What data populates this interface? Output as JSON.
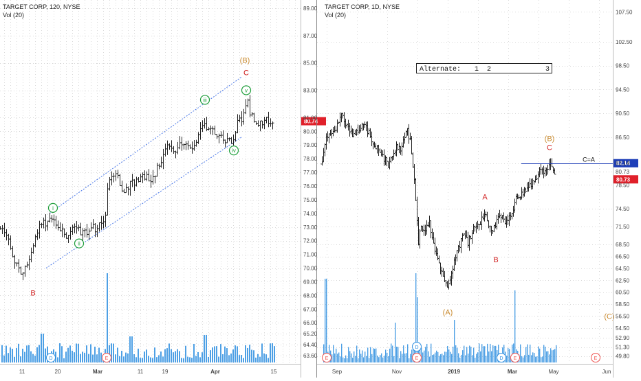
{
  "colors": {
    "bull": "#26a69a",
    "bear": "#ef5350",
    "bar": "#222222",
    "volume": "#2f8fe0",
    "channel": "#4a78e8",
    "wave_red": "#d01f1f",
    "wave_brown": "#c98a2e",
    "wave_green": "#1e9e3a",
    "price_label": "#e0202a",
    "target_label": "#1f3fb8",
    "grid": "#d8d8d8",
    "axis_text": "#444444"
  },
  "chart_data": [
    {
      "type": "ohlc",
      "title": "TARGET CORP, 120, NYSE",
      "indicator": "Vol (20)",
      "ylim": [
        63.0,
        89.6
      ],
      "y_ticks": [
        "89.00",
        "87.00",
        "85.00",
        "83.00",
        "81.00",
        "80.00",
        "79.00",
        "78.00",
        "77.00",
        "76.00",
        "75.00",
        "74.00",
        "73.00",
        "72.00",
        "71.00",
        "70.00",
        "69.00",
        "68.00",
        "67.00",
        "66.00",
        "65.20",
        "64.40",
        "63.60"
      ],
      "x_ticks": [
        "11",
        "20",
        "Mar",
        "11",
        "19",
        "Apr",
        "15"
      ],
      "last_price": "80.74",
      "path": [
        [
          0,
          73.0
        ],
        [
          8,
          72.4
        ],
        [
          14,
          71.6
        ],
        [
          20,
          70.6
        ],
        [
          26,
          70.0
        ],
        [
          32,
          69.4
        ],
        [
          38,
          70.3
        ],
        [
          44,
          70.8
        ],
        [
          50,
          72.2
        ],
        [
          56,
          73.0
        ],
        [
          62,
          73.2
        ],
        [
          68,
          73.4
        ],
        [
          74,
          73.8
        ],
        [
          80,
          73.5
        ],
        [
          86,
          72.8
        ],
        [
          92,
          72.6
        ],
        [
          98,
          72.2
        ],
        [
          104,
          73.0
        ],
        [
          110,
          73.1
        ],
        [
          116,
          72.6
        ],
        [
          122,
          72.9
        ],
        [
          128,
          72.6
        ],
        [
          134,
          73.0
        ],
        [
          140,
          72.8
        ],
        [
          146,
          73.4
        ],
        [
          152,
          73.0
        ],
        [
          156,
          75.8
        ],
        [
          160,
          76.5
        ],
        [
          166,
          77.0
        ],
        [
          172,
          76.6
        ],
        [
          178,
          75.4
        ],
        [
          184,
          75.7
        ],
        [
          190,
          76.2
        ],
        [
          196,
          76.3
        ],
        [
          202,
          76.5
        ],
        [
          208,
          76.8
        ],
        [
          214,
          76.6
        ],
        [
          220,
          76.5
        ],
        [
          226,
          77.0
        ],
        [
          232,
          77.8
        ],
        [
          238,
          78.3
        ],
        [
          244,
          79.2
        ],
        [
          250,
          78.5
        ],
        [
          256,
          78.6
        ],
        [
          262,
          79.4
        ],
        [
          268,
          79.0
        ],
        [
          274,
          78.6
        ],
        [
          280,
          78.8
        ],
        [
          286,
          79.6
        ],
        [
          292,
          80.2
        ],
        [
          298,
          80.5
        ],
        [
          304,
          80.2
        ],
        [
          310,
          80.0
        ],
        [
          316,
          79.8
        ],
        [
          322,
          79.6
        ],
        [
          328,
          79.4
        ],
        [
          334,
          79.2
        ],
        [
          340,
          79.6
        ],
        [
          346,
          80.8
        ],
        [
          352,
          81.0
        ],
        [
          356,
          81.6
        ],
        [
          360,
          82.2
        ],
        [
          364,
          81.2
        ],
        [
          368,
          80.9
        ],
        [
          374,
          80.7
        ],
        [
          380,
          80.6
        ],
        [
          386,
          80.8
        ],
        [
          392,
          80.6
        ],
        [
          398,
          80.7
        ]
      ],
      "waves": [
        {
          "label": "B",
          "kind": "letter",
          "color": "red",
          "x": 48,
          "price": 68.2
        },
        {
          "label": "i",
          "kind": "circle",
          "color": "green",
          "x": 77,
          "price": 74.4
        },
        {
          "label": "ii",
          "kind": "circle",
          "color": "green",
          "x": 115,
          "price": 71.8
        },
        {
          "label": "iii",
          "kind": "circle",
          "color": "green",
          "x": 298,
          "price": 82.3
        },
        {
          "label": "iv",
          "kind": "circle",
          "color": "green",
          "x": 340,
          "price": 78.6
        },
        {
          "label": "v",
          "kind": "circle",
          "color": "green",
          "x": 358,
          "price": 83.0
        },
        {
          "label": "C",
          "kind": "letter",
          "color": "red",
          "x": 358,
          "price": 84.3
        },
        {
          "label": "(B)",
          "kind": "letter",
          "color": "brown",
          "x": 356,
          "price": 85.2
        }
      ],
      "channel": [
        {
          "x1": 72,
          "p1": 74.0,
          "x2": 352,
          "p2": 84.0
        },
        {
          "x1": 67,
          "p1": 70.0,
          "x2": 352,
          "p2": 79.6
        }
      ],
      "events": [
        {
          "label": "D",
          "x": 74,
          "kind": "dividend"
        },
        {
          "label": "E",
          "x": 155,
          "kind": "earnings"
        }
      ]
    },
    {
      "type": "ohlc",
      "title": "TARGET CORP, 1D, NYSE",
      "indicator": "Vol (20)",
      "ylim": [
        48.5,
        109.5
      ],
      "y_ticks": [
        "107.50",
        "102.50",
        "98.50",
        "94.50",
        "90.50",
        "86.50",
        "82.14",
        "80.73",
        "78.50",
        "74.50",
        "71.50",
        "68.50",
        "66.50",
        "64.50",
        "62.50",
        "60.50",
        "58.50",
        "56.50",
        "54.50",
        "52.90",
        "51.30",
        "49.80"
      ],
      "x_ticks": [
        "Sep",
        "Nov",
        "2019",
        "Mar",
        "May",
        "Jun"
      ],
      "last_price": "80.73",
      "target_price": "82.14",
      "target_label": "C=A",
      "legend_box": {
        "text": "Alternate:",
        "numbers": [
          "1",
          "2",
          "3"
        ]
      },
      "path": [
        [
          468,
          82.0
        ],
        [
          472,
          85.5
        ],
        [
          478,
          87.0
        ],
        [
          484,
          87.0
        ],
        [
          490,
          88.5
        ],
        [
          496,
          90.3
        ],
        [
          502,
          88.8
        ],
        [
          510,
          87.0
        ],
        [
          516,
          86.8
        ],
        [
          522,
          88.0
        ],
        [
          528,
          89.0
        ],
        [
          534,
          87.5
        ],
        [
          540,
          86.2
        ],
        [
          546,
          85.0
        ],
        [
          552,
          84.3
        ],
        [
          558,
          83.0
        ],
        [
          564,
          82.0
        ],
        [
          570,
          83.0
        ],
        [
          576,
          85.3
        ],
        [
          582,
          84.2
        ],
        [
          586,
          86.0
        ],
        [
          592,
          87.5
        ],
        [
          596,
          86.0
        ],
        [
          600,
          82.0
        ],
        [
          604,
          76.0
        ],
        [
          608,
          69.0
        ],
        [
          612,
          71.5
        ],
        [
          618,
          71.0
        ],
        [
          624,
          72.0
        ],
        [
          628,
          69.5
        ],
        [
          634,
          67.0
        ],
        [
          640,
          64.5
        ],
        [
          646,
          62.5
        ],
        [
          650,
          61.0
        ],
        [
          656,
          64.0
        ],
        [
          662,
          66.5
        ],
        [
          668,
          68.5
        ],
        [
          674,
          70.5
        ],
        [
          680,
          68.5
        ],
        [
          686,
          70.8
        ],
        [
          692,
          71.5
        ],
        [
          698,
          72.3
        ],
        [
          704,
          73.5
        ],
        [
          710,
          72.0
        ],
        [
          716,
          71.0
        ],
        [
          722,
          72.5
        ],
        [
          728,
          73.4
        ],
        [
          734,
          72.3
        ],
        [
          740,
          73.4
        ],
        [
          746,
          74.0
        ],
        [
          750,
          76.8
        ],
        [
          756,
          76.5
        ],
        [
          762,
          77.6
        ],
        [
          768,
          77.8
        ],
        [
          774,
          79.0
        ],
        [
          780,
          80.0
        ],
        [
          786,
          81.0
        ],
        [
          790,
          80.5
        ],
        [
          794,
          81.2
        ],
        [
          798,
          81.8
        ],
        [
          802,
          81.3
        ],
        [
          806,
          80.7
        ]
      ],
      "waves": [
        {
          "label": "A",
          "kind": "letter",
          "color": "red",
          "x": 705,
          "price": 76.5
        },
        {
          "label": "B",
          "kind": "letter",
          "color": "red",
          "x": 721,
          "price": 66.0
        },
        {
          "label": "(A)",
          "kind": "letter",
          "color": "brown",
          "x": 651,
          "price": 57.2
        },
        {
          "label": "(B)",
          "kind": "letter",
          "color": "brown",
          "x": 799,
          "price": 86.3
        },
        {
          "label": "C",
          "kind": "letter",
          "color": "red",
          "x": 799,
          "price": 84.8
        },
        {
          "label": "(C)",
          "kind": "letter",
          "color": "brown",
          "x": 886,
          "price": 56.5
        }
      ],
      "events": [
        {
          "label": "E",
          "x": 475,
          "kind": "earnings"
        },
        {
          "label": "E",
          "x": 606,
          "kind": "earnings"
        },
        {
          "label": "D",
          "x": 606,
          "kind": "dividend"
        },
        {
          "label": "D",
          "x": 729,
          "kind": "dividend"
        },
        {
          "label": "E",
          "x": 749,
          "kind": "earnings"
        },
        {
          "label": "E",
          "x": 866,
          "kind": "earnings"
        }
      ]
    }
  ]
}
